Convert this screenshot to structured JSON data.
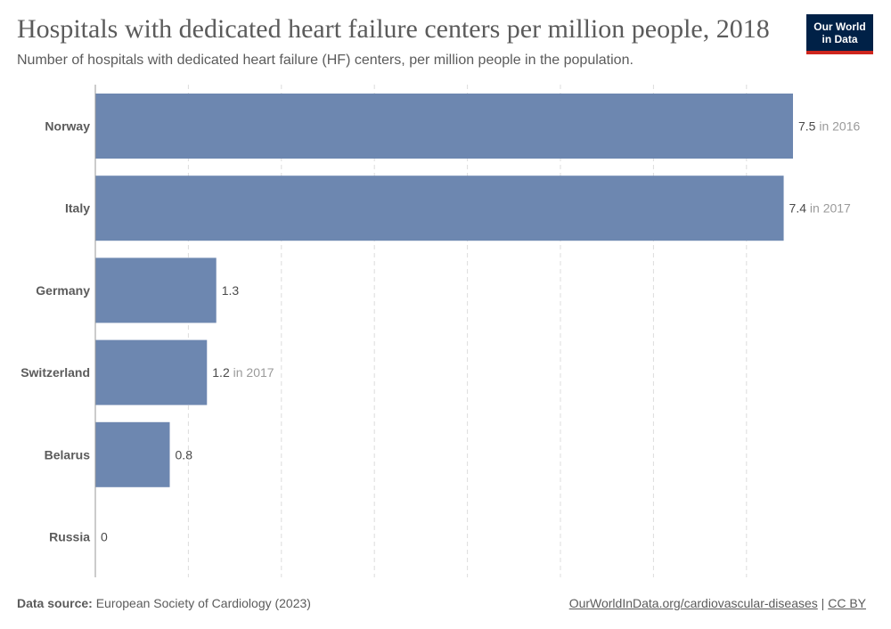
{
  "header": {
    "title": "Hospitals with dedicated heart failure centers per million people, 2018",
    "subtitle": "Number of hospitals with dedicated heart failure (HF) centers, per million people in the population.",
    "logo_line1": "Our World",
    "logo_line2": "in Data"
  },
  "footer": {
    "source_label": "Data source:",
    "source_text": "European Society of Cardiology (2023)",
    "link_text": "OurWorldInData.org/cardiovascular-diseases",
    "separator": "|",
    "license": "CC BY"
  },
  "chart_data": {
    "type": "bar",
    "orientation": "horizontal",
    "categories": [
      "Norway",
      "Italy",
      "Germany",
      "Switzerland",
      "Belarus",
      "Russia"
    ],
    "values": [
      7.5,
      7.4,
      1.3,
      1.2,
      0.8,
      0
    ],
    "value_labels": [
      "7.5",
      "7.4",
      "1.3",
      "1.2",
      "0.8",
      "0"
    ],
    "year_notes": [
      "in 2016",
      "in 2017",
      "",
      "in 2017",
      "",
      ""
    ],
    "xlim": [
      0,
      7.5
    ],
    "grid": true,
    "bar_color": "#6d87b0"
  }
}
